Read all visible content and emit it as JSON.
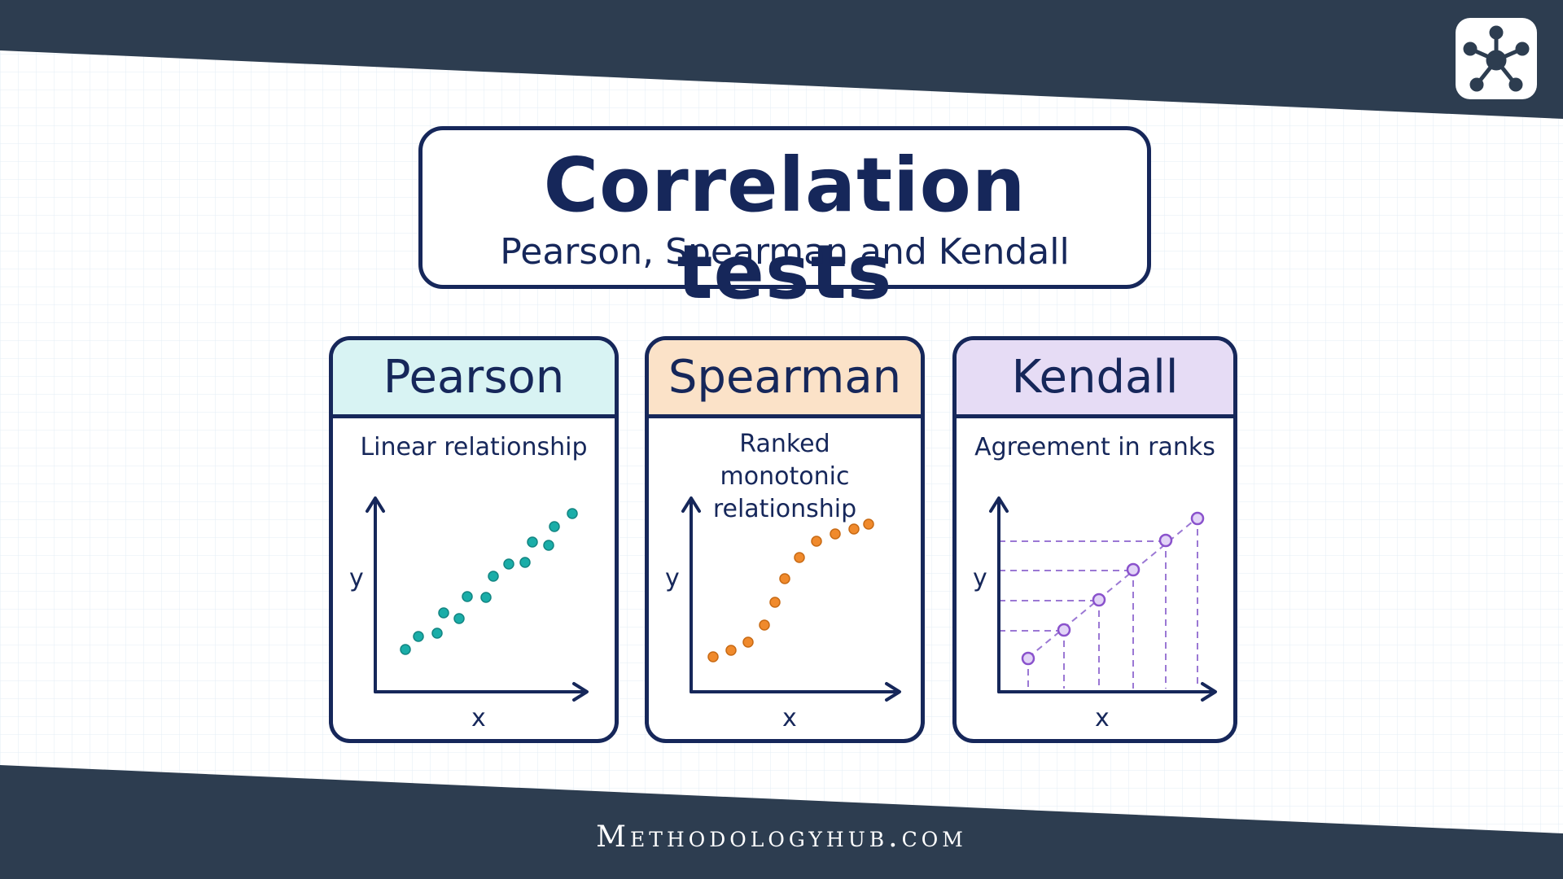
{
  "colors": {
    "navy": "#2d3d50",
    "ink": "#16275a",
    "pearson": "#1aada8",
    "pearson_header": "#d8f3f3",
    "spearman": "#f08a2c",
    "spearman_header": "#fbe2c8",
    "kendall": "#9060d0",
    "kendall_header": "#e6dcf5"
  },
  "header": {
    "title": "Correlation tests",
    "subtitle": "Pearson, Spearman and Kendall"
  },
  "cards": [
    {
      "title": "Pearson",
      "description": "Linear relationship",
      "ylabel": "y",
      "xlabel": "x",
      "icon": "scatter-linear"
    },
    {
      "title": "Spearman",
      "description": "Ranked monotonic relationship",
      "ylabel": "y",
      "xlabel": "x",
      "icon": "scatter-monotonic"
    },
    {
      "title": "Kendall",
      "description": "Agreement in ranks",
      "ylabel": "y",
      "xlabel": "x",
      "icon": "ranked-points"
    }
  ],
  "footer": {
    "brand": "Methodologyhub.com"
  },
  "logo": {
    "icon": "network-hub-icon"
  }
}
